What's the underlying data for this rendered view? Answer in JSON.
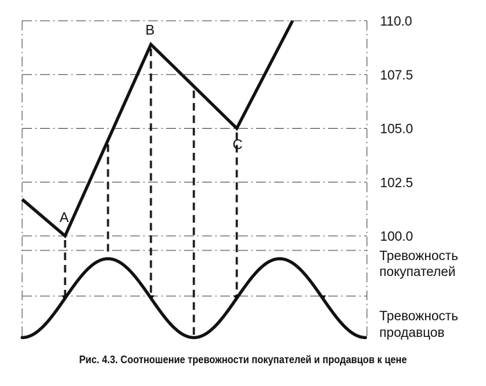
{
  "chart_data": {
    "type": "line",
    "y_axis": {
      "position": "right",
      "ticks": [
        "110.0",
        "107.5",
        "105.0",
        "102.5",
        "100.0"
      ],
      "tick_values": [
        110.0,
        107.5,
        105.0,
        102.5,
        100.0
      ],
      "ylim": [
        100.0,
        110.0
      ]
    },
    "price_series": {
      "points": [
        {
          "x": 0,
          "y": 101.7
        },
        {
          "x": 1,
          "y": 100.0
        },
        {
          "x": 3,
          "y": 108.9
        },
        {
          "x": 5,
          "y": 105.0
        },
        {
          "x": 6.3,
          "y": 110.0
        }
      ]
    },
    "point_labels": [
      {
        "label": "A",
        "x": 1,
        "y": 100.0
      },
      {
        "label": "B",
        "x": 3,
        "y": 108.9
      },
      {
        "label": "C",
        "x": 5,
        "y": 105.0
      }
    ],
    "anxiety_curve": {
      "shape": "sine",
      "period_in_x": 4,
      "peak_x": [
        2,
        6
      ],
      "trough_x": [
        0,
        4,
        8
      ]
    },
    "vertical_dashed_links": [
      1,
      2,
      3,
      4,
      5
    ],
    "side_labels": {
      "buyers": [
        "Тревожность",
        "покупателей"
      ],
      "sellers": [
        "Тревожность",
        "продавцов"
      ]
    },
    "grid": "dash-dot"
  },
  "caption": {
    "prefix": "Рис. 4.3.",
    "text": "Соотношение тревожности покупателей и продавцов к цене"
  }
}
